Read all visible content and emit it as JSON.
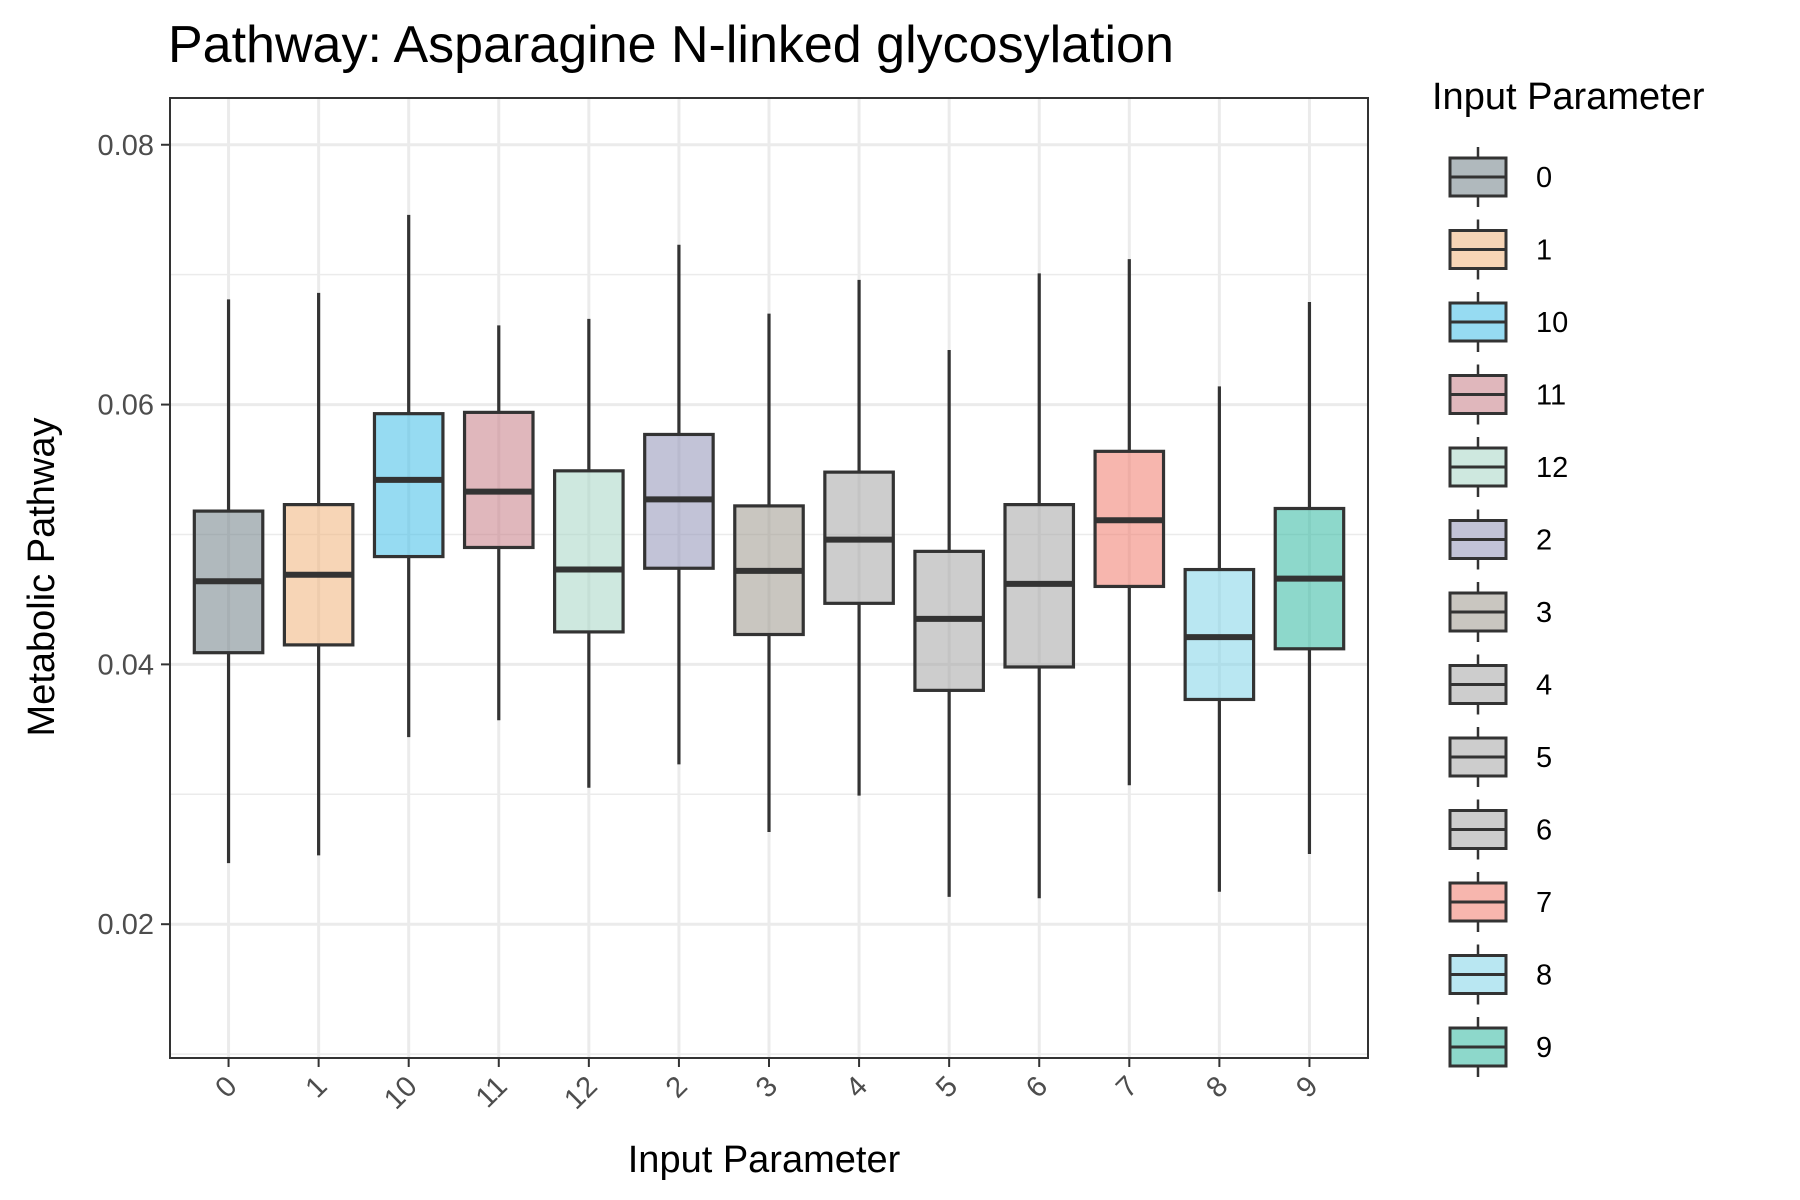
{
  "chart_data": {
    "type": "boxplot",
    "title": "Pathway: Asparagine N-linked glycosylation",
    "xlabel": "Input Parameter",
    "ylabel": "Metabolic Pathway",
    "ylim": [
      0.0097,
      0.0836
    ],
    "yticks": [
      0.02,
      0.04,
      0.06,
      0.08
    ],
    "ytick_labels": [
      "0.02",
      "0.04",
      "0.06",
      "0.08"
    ],
    "grid": true,
    "legend": {
      "title": "Input Parameter",
      "position": "right"
    },
    "categories": [
      "0",
      "1",
      "10",
      "11",
      "12",
      "2",
      "3",
      "4",
      "5",
      "6",
      "7",
      "8",
      "9"
    ],
    "boxes": [
      {
        "category": "0",
        "min": 0.0247,
        "q1": 0.0409,
        "median": 0.0464,
        "q3": 0.0518,
        "max": 0.0681,
        "color": "#707f86"
      },
      {
        "category": "1",
        "min": 0.0253,
        "q1": 0.0415,
        "median": 0.0469,
        "q3": 0.0523,
        "max": 0.0686,
        "color": "#f0b27a"
      },
      {
        "category": "10",
        "min": 0.0344,
        "q1": 0.0483,
        "median": 0.0542,
        "q3": 0.0593,
        "max": 0.0746,
        "color": "#3fbde8"
      },
      {
        "category": "11",
        "min": 0.0357,
        "q1": 0.049,
        "median": 0.0533,
        "q3": 0.0594,
        "max": 0.0661,
        "color": "#c77b85"
      },
      {
        "category": "12",
        "min": 0.0305,
        "q1": 0.0425,
        "median": 0.0473,
        "q3": 0.0549,
        "max": 0.0666,
        "color": "#a6d6c4"
      },
      {
        "category": "2",
        "min": 0.0323,
        "q1": 0.0474,
        "median": 0.0527,
        "q3": 0.0577,
        "max": 0.0723,
        "color": "#9092b7"
      },
      {
        "category": "3",
        "min": 0.0271,
        "q1": 0.0423,
        "median": 0.0472,
        "q3": 0.0522,
        "max": 0.067,
        "color": "#9c978c"
      },
      {
        "category": "4",
        "min": 0.0299,
        "q1": 0.0447,
        "median": 0.0496,
        "q3": 0.0548,
        "max": 0.0696,
        "color": "#a4a4a4"
      },
      {
        "category": "5",
        "min": 0.0221,
        "q1": 0.038,
        "median": 0.0435,
        "q3": 0.0487,
        "max": 0.0642,
        "color": "#a4a4a4"
      },
      {
        "category": "6",
        "min": 0.022,
        "q1": 0.0398,
        "median": 0.0462,
        "q3": 0.0523,
        "max": 0.0701,
        "color": "#a4a4a4"
      },
      {
        "category": "7",
        "min": 0.0307,
        "q1": 0.046,
        "median": 0.0511,
        "q3": 0.0564,
        "max": 0.0712,
        "color": "#f17a6c"
      },
      {
        "category": "8",
        "min": 0.0225,
        "q1": 0.0373,
        "median": 0.0421,
        "q3": 0.0473,
        "max": 0.0614,
        "color": "#80d3e8"
      },
      {
        "category": "9",
        "min": 0.0254,
        "q1": 0.0412,
        "median": 0.0466,
        "q3": 0.052,
        "max": 0.0679,
        "color": "#2fb8a0"
      }
    ]
  }
}
